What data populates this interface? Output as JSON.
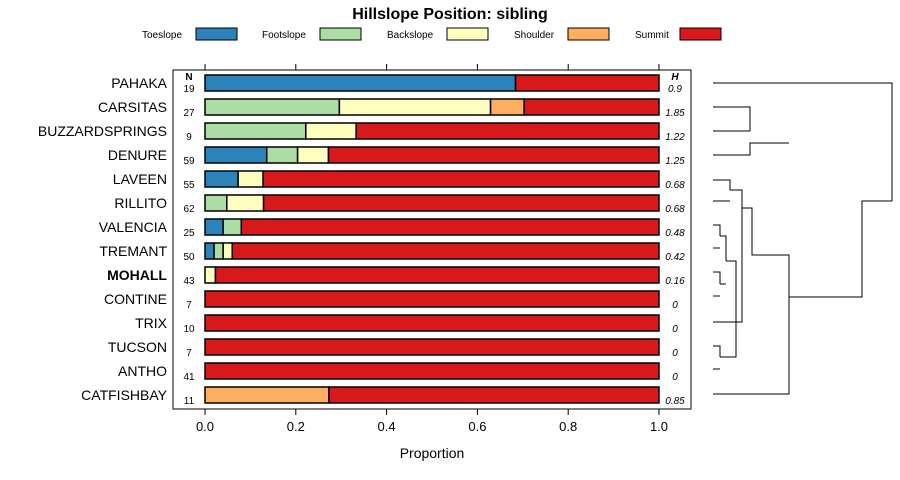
{
  "chart_data": {
    "type": "bar",
    "orientation": "horizontal-stacked",
    "title": "Hillslope Position: sibling",
    "xlabel": "Proportion",
    "ylabel": "",
    "xlim": [
      0,
      1
    ],
    "xticks": [
      0,
      0.2,
      0.4,
      0.6,
      0.8,
      1
    ],
    "xtick_labels": [
      "0.0",
      "0.2",
      "0.4",
      "0.6",
      "0.8",
      "1.0"
    ],
    "n_header": "N",
    "h_header": "H",
    "highlight": "MOHALL",
    "legend": [
      {
        "name": "Toeslope",
        "color": "#2b83ba"
      },
      {
        "name": "Footslope",
        "color": "#abdda4"
      },
      {
        "name": "Backslope",
        "color": "#ffffbf"
      },
      {
        "name": "Shoulder",
        "color": "#fdae61"
      },
      {
        "name": "Summit",
        "color": "#d7191c"
      }
    ],
    "rows": [
      {
        "label": "PAHAKA",
        "n": "19",
        "h": "0.9",
        "values": [
          0.684,
          0,
          0,
          0,
          0.316
        ]
      },
      {
        "label": "CARSITAS",
        "n": "27",
        "h": "1.85",
        "values": [
          0,
          0.296,
          0.333,
          0.074,
          0.297
        ]
      },
      {
        "label": "BUZZARDSPRINGS",
        "n": "9",
        "h": "1.22",
        "values": [
          0,
          0.222,
          0.111,
          0,
          0.667
        ]
      },
      {
        "label": "DENURE",
        "n": "59",
        "h": "1.25",
        "values": [
          0.136,
          0.068,
          0.068,
          0,
          0.728
        ]
      },
      {
        "label": "LAVEEN",
        "n": "55",
        "h": "0.68",
        "values": [
          0.073,
          0,
          0.055,
          0,
          0.872
        ]
      },
      {
        "label": "RILLITO",
        "n": "62",
        "h": "0.68",
        "values": [
          0,
          0.048,
          0.081,
          0,
          0.871
        ]
      },
      {
        "label": "VALENCIA",
        "n": "25",
        "h": "0.48",
        "values": [
          0.04,
          0.04,
          0,
          0,
          0.92
        ]
      },
      {
        "label": "TREMANT",
        "n": "50",
        "h": "0.42",
        "values": [
          0.02,
          0.02,
          0.02,
          0,
          0.94
        ]
      },
      {
        "label": "MOHALL",
        "n": "43",
        "h": "0.16",
        "values": [
          0,
          0,
          0.023,
          0,
          0.977
        ]
      },
      {
        "label": "CONTINE",
        "n": "7",
        "h": "0",
        "values": [
          0,
          0,
          0,
          0,
          1
        ]
      },
      {
        "label": "TRIX",
        "n": "10",
        "h": "0",
        "values": [
          0,
          0,
          0,
          0,
          1
        ]
      },
      {
        "label": "TUCSON",
        "n": "7",
        "h": "0",
        "values": [
          0,
          0,
          0,
          0,
          1
        ]
      },
      {
        "label": "ANTHO",
        "n": "41",
        "h": "0",
        "values": [
          0,
          0,
          0,
          0,
          1
        ]
      },
      {
        "label": "CATFISHBAY",
        "n": "11",
        "h": "0.85",
        "values": [
          0,
          0,
          0,
          0.273,
          0.727
        ]
      }
    ]
  }
}
